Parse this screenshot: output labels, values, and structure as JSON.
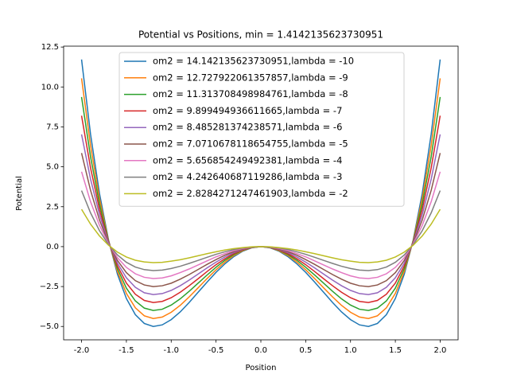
{
  "chart_data": {
    "type": "line",
    "title": "Potential vs Positions, min  = 1.4142135623730951",
    "x_label": "Position",
    "y_label": "Potential",
    "x": [
      -2,
      -1.9,
      -1.8,
      -1.7,
      -1.6,
      -1.5,
      -1.4,
      -1.3,
      -1.2,
      -1.1,
      -1,
      -0.9,
      -0.8,
      -0.7,
      -0.6,
      -0.5,
      -0.4,
      -0.3,
      -0.2,
      -0.1,
      0,
      0.1,
      0.2,
      0.3,
      0.4,
      0.5,
      0.6,
      0.7,
      0.8,
      0.9,
      1,
      1.1,
      1.2,
      1.3,
      1.4,
      1.5,
      1.6,
      1.7,
      1.8,
      1.9,
      2
    ],
    "series": [
      {
        "name": "om2 = 14.142135623730951,lambda = -10",
        "color": "#1f77b4",
        "values": [
          11.72,
          7.05,
          3.33,
          0.44,
          -1.72,
          -3.25,
          -4.26,
          -4.81,
          -5,
          -4.9,
          -4.57,
          -4.09,
          -3.5,
          -2.86,
          -2.22,
          -1.61,
          -1.07,
          -0.62,
          -0.28,
          -0.07,
          0,
          -0.07,
          -0.28,
          -0.62,
          -1.07,
          -1.61,
          -2.22,
          -2.86,
          -3.5,
          -4.09,
          -4.57,
          -4.9,
          -5,
          -4.81,
          -4.26,
          -3.25,
          -1.72,
          0.44,
          3.33,
          7.05,
          11.72
        ]
      },
      {
        "name": "om2 = 12.727922061357857,lambda = -9",
        "color": "#ff7f0e",
        "values": [
          10.54,
          6.35,
          3,
          0.4,
          -1.55,
          -2.93,
          -3.83,
          -4.33,
          -4.5,
          -4.41,
          -4.11,
          -3.68,
          -3.15,
          -2.58,
          -2,
          -1.45,
          -0.96,
          -0.55,
          -0.25,
          -0.06,
          0,
          -0.06,
          -0.25,
          -0.55,
          -0.96,
          -1.45,
          -2,
          -2.58,
          -3.15,
          -3.68,
          -4.11,
          -4.41,
          -4.5,
          -4.33,
          -3.83,
          -2.93,
          -1.55,
          0.4,
          3,
          6.35,
          10.54
        ]
      },
      {
        "name": "om2 = 11.313708498984761,lambda = -8",
        "color": "#2ca02c",
        "values": [
          9.37,
          5.64,
          2.67,
          0.36,
          -1.37,
          -2.6,
          -3.4,
          -3.85,
          -4,
          -3.92,
          -3.66,
          -3.27,
          -2.8,
          -2.29,
          -1.78,
          -1.29,
          -0.85,
          -0.49,
          -0.22,
          -0.06,
          0,
          -0.06,
          -0.22,
          -0.49,
          -0.85,
          -1.29,
          -1.78,
          -2.29,
          -2.8,
          -3.27,
          -3.66,
          -3.92,
          -4,
          -3.85,
          -3.4,
          -2.6,
          -1.37,
          0.36,
          2.67,
          5.64,
          9.37
        ]
      },
      {
        "name": "om2 = 9.899494936611665,lambda = -7",
        "color": "#d62728",
        "values": [
          8.2,
          4.94,
          2.33,
          0.31,
          -1.2,
          -2.28,
          -2.98,
          -3.37,
          -3.5,
          -3.43,
          -3.2,
          -2.86,
          -2.45,
          -2.01,
          -1.56,
          -1.13,
          -0.75,
          -0.43,
          -0.2,
          -0.05,
          0,
          -0.05,
          -0.2,
          -0.43,
          -0.75,
          -1.13,
          -1.56,
          -2.01,
          -2.45,
          -2.86,
          -3.2,
          -3.43,
          -3.5,
          -3.37,
          -2.98,
          -2.28,
          -1.2,
          0.31,
          2.33,
          4.94,
          8.2
        ]
      },
      {
        "name": "om2 = 8.485281374238571,lambda = -6",
        "color": "#9467bd",
        "values": [
          7.03,
          4.23,
          2,
          0.27,
          -1.03,
          -1.95,
          -2.55,
          -2.89,
          -3,
          -2.94,
          -2.74,
          -2.45,
          -2.1,
          -1.72,
          -1.33,
          -0.97,
          -0.64,
          -0.37,
          -0.17,
          -0.04,
          0,
          -0.04,
          -0.17,
          -0.37,
          -0.64,
          -0.97,
          -1.33,
          -1.72,
          -2.1,
          -2.45,
          -2.74,
          -2.94,
          -3,
          -2.89,
          -2.55,
          -1.95,
          -1.03,
          0.27,
          2,
          4.23,
          7.03
        ]
      },
      {
        "name": "om2 = 7.0710678118654755,lambda = -5",
        "color": "#8c564b",
        "values": [
          5.86,
          3.53,
          1.67,
          0.22,
          -0.86,
          -1.63,
          -2.13,
          -2.4,
          -2.5,
          -2.45,
          -2.29,
          -2.04,
          -1.75,
          -1.43,
          -1.11,
          -0.81,
          -0.53,
          -0.31,
          -0.14,
          -0.04,
          0,
          -0.04,
          -0.14,
          -0.31,
          -0.53,
          -0.81,
          -1.11,
          -1.43,
          -1.75,
          -2.04,
          -2.29,
          -2.45,
          -2.5,
          -2.4,
          -2.13,
          -1.63,
          -0.86,
          0.22,
          1.67,
          3.53,
          5.86
        ]
      },
      {
        "name": "om2 = 5.656854249492381,lambda = -4",
        "color": "#e377c2",
        "values": [
          4.69,
          2.82,
          1.33,
          0.18,
          -0.69,
          -1.3,
          -1.7,
          -1.92,
          -2,
          -1.96,
          -1.83,
          -1.63,
          -1.4,
          -1.15,
          -0.89,
          -0.64,
          -0.43,
          -0.25,
          -0.11,
          -0.03,
          0,
          -0.03,
          -0.11,
          -0.25,
          -0.43,
          -0.64,
          -0.89,
          -1.15,
          -1.4,
          -1.63,
          -1.83,
          -1.96,
          -2,
          -1.92,
          -1.7,
          -1.3,
          -0.69,
          0.18,
          1.33,
          2.82,
          4.69
        ]
      },
      {
        "name": "om2 = 4.242640687119286,lambda = -3",
        "color": "#7f7f7f",
        "values": [
          3.51,
          2.12,
          1,
          0.13,
          -0.52,
          -0.98,
          -1.28,
          -1.44,
          -1.5,
          -1.47,
          -1.37,
          -1.23,
          -1.05,
          -0.86,
          -0.67,
          -0.48,
          -0.32,
          -0.18,
          -0.08,
          -0.02,
          0,
          -0.02,
          -0.08,
          -0.18,
          -0.32,
          -0.48,
          -0.67,
          -0.86,
          -1.05,
          -1.23,
          -1.37,
          -1.47,
          -1.5,
          -1.44,
          -1.28,
          -0.98,
          -0.52,
          0.13,
          1,
          2.12,
          3.51
        ]
      },
      {
        "name": "om2 = 2.8284271247461903,lambda = -2",
        "color": "#bcbd22",
        "values": [
          2.34,
          1.41,
          0.67,
          0.09,
          -0.34,
          -0.65,
          -0.85,
          -0.96,
          -1,
          -0.98,
          -0.91,
          -0.82,
          -0.7,
          -0.57,
          -0.44,
          -0.32,
          -0.21,
          -0.12,
          -0.06,
          -0.01,
          0,
          -0.01,
          -0.06,
          -0.12,
          -0.21,
          -0.32,
          -0.44,
          -0.57,
          -0.7,
          -0.82,
          -0.91,
          -0.98,
          -1,
          -0.96,
          -0.85,
          -0.65,
          -0.34,
          0.09,
          0.67,
          1.41,
          2.34
        ]
      }
    ],
    "xlim": [
      -2.2,
      2.2
    ],
    "ylim": [
      -5.836,
      12.556
    ],
    "xticks": [
      {
        "value": -2,
        "label": "-2.0"
      },
      {
        "value": -1.5,
        "label": "-1.5"
      },
      {
        "value": -1,
        "label": "-1.0"
      },
      {
        "value": -0.5,
        "label": "-0.5"
      },
      {
        "value": 0,
        "label": "0.0"
      },
      {
        "value": 0.5,
        "label": "0.5"
      },
      {
        "value": 1,
        "label": "1.0"
      },
      {
        "value": 1.5,
        "label": "1.5"
      },
      {
        "value": 2,
        "label": "2.0"
      }
    ],
    "yticks": [
      {
        "value": -5,
        "label": "−5.0"
      },
      {
        "value": -2.5,
        "label": "−2.5"
      },
      {
        "value": 0,
        "label": "0.0"
      },
      {
        "value": 2.5,
        "label": "2.5"
      },
      {
        "value": 5,
        "label": "5.0"
      },
      {
        "value": 7.5,
        "label": "7.5"
      },
      {
        "value": 10,
        "label": "10.0"
      },
      {
        "value": 12.5,
        "label": "12.5"
      }
    ],
    "legend": "upper center",
    "grid": false
  }
}
